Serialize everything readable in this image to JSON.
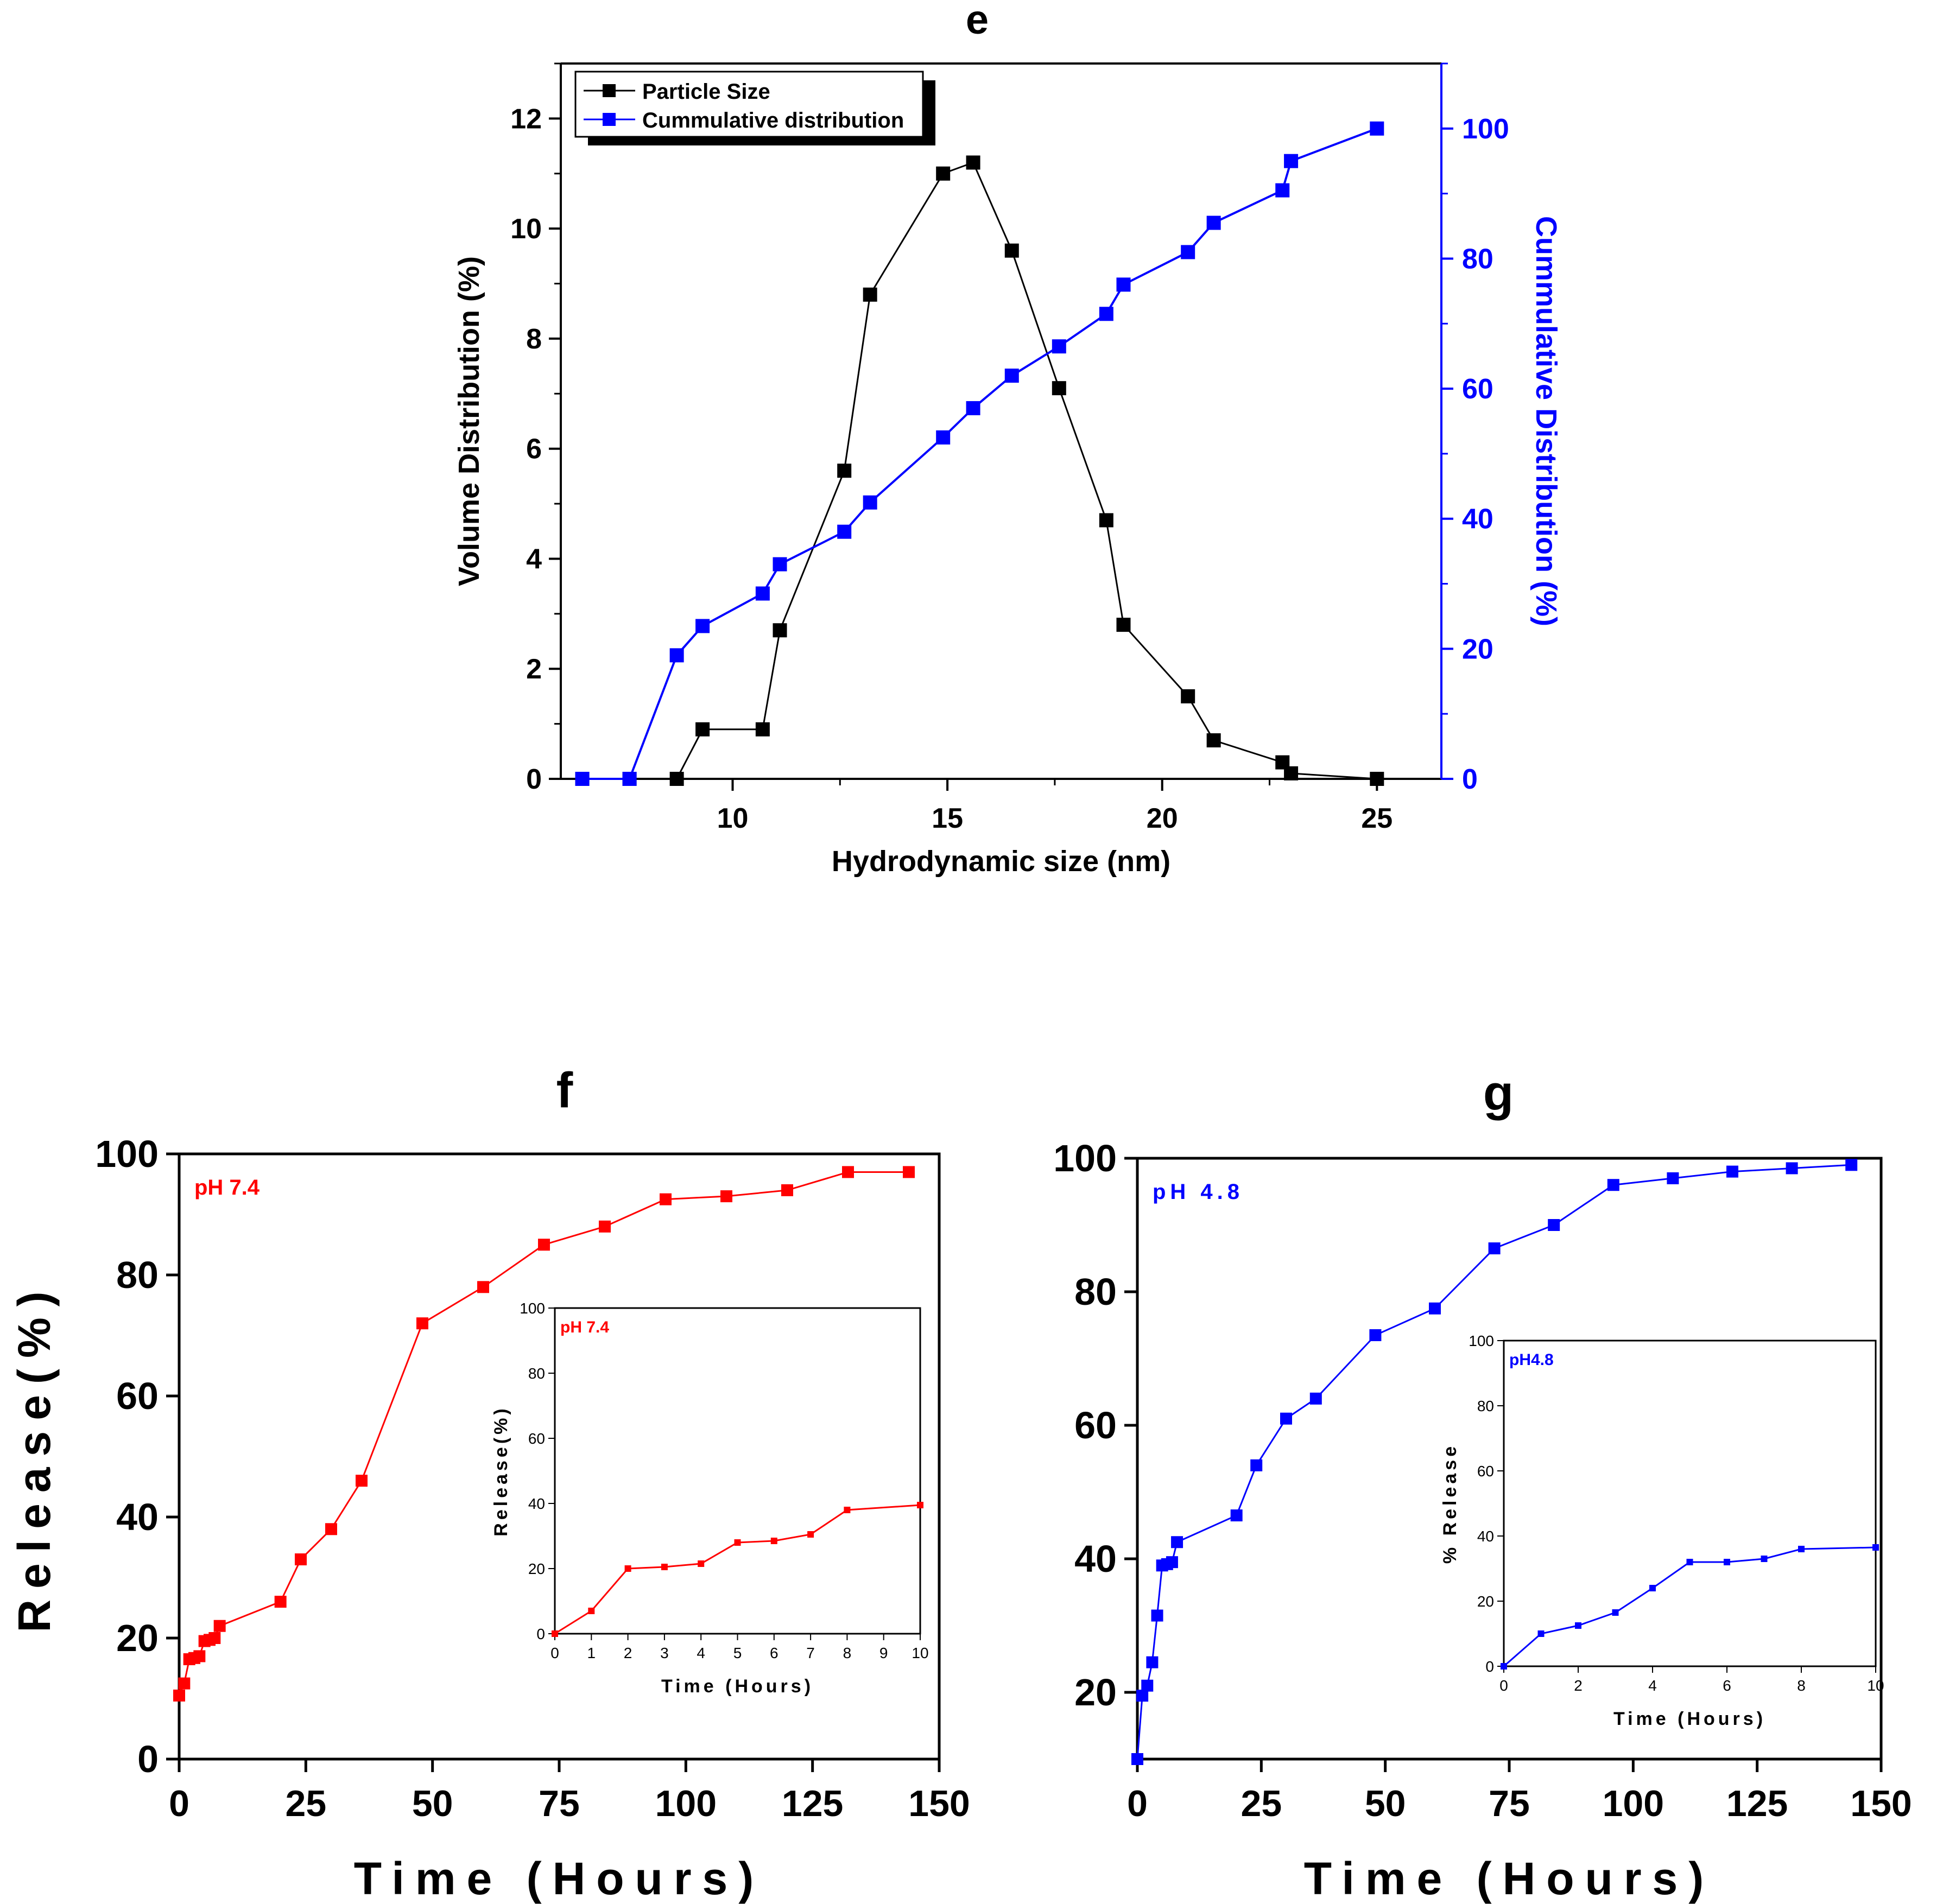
{
  "colors": {
    "black": "#000000",
    "blue": "#0000ff",
    "red": "#ff0000"
  },
  "chart_data": [
    {
      "id": "e",
      "type": "line",
      "panel_label": "e",
      "xlabel": "Hydrodynamic size (nm)",
      "ylabel": "Volume Distribution (%)",
      "ylabel_right": "Cummulative Distribution (%)",
      "xlim": [
        6,
        26.5
      ],
      "ylim": [
        0,
        13
      ],
      "ylim_right": [
        0,
        110
      ],
      "xticks": [
        10,
        15,
        20,
        25
      ],
      "yticks": [
        0,
        2,
        4,
        6,
        8,
        10,
        12
      ],
      "yticks_right": [
        0,
        20,
        40,
        60,
        80,
        100
      ],
      "legend": [
        "Particle Size",
        "Cummulative distribution"
      ],
      "legend_position": "top-left",
      "series": [
        {
          "name": "Particle Size",
          "axis": "left",
          "color": "#000000",
          "x": [
            6.5,
            7.6,
            8.7,
            9.3,
            10.7,
            11.1,
            12.6,
            13.2,
            14.9,
            15.6,
            16.5,
            17.6,
            18.7,
            19.1,
            20.6,
            21.2,
            22.8,
            23.0,
            25.0
          ],
          "y": [
            0,
            0,
            0,
            0.9,
            0.9,
            2.7,
            5.6,
            8.8,
            11.0,
            11.2,
            9.6,
            7.1,
            4.7,
            2.8,
            1.5,
            0.7,
            0.3,
            0.1,
            0
          ]
        },
        {
          "name": "Cummulative distribution",
          "axis": "right",
          "color": "#0000ff",
          "x": [
            6.5,
            7.6,
            8.7,
            9.3,
            10.7,
            11.1,
            12.6,
            13.2,
            14.9,
            15.6,
            16.5,
            17.6,
            18.7,
            19.1,
            20.6,
            21.2,
            22.8,
            23.0,
            25.0
          ],
          "y": [
            0,
            0,
            19,
            23.5,
            28.5,
            33,
            38,
            42.5,
            52.5,
            57,
            62,
            66.5,
            71.5,
            76,
            81,
            85.5,
            90.5,
            95,
            100
          ]
        }
      ]
    },
    {
      "id": "f",
      "type": "line",
      "panel_label": "f",
      "annotation": "pH 7.4",
      "xlabel": "Time (Hours)",
      "ylabel": "Release(%)",
      "xlim": [
        0,
        150
      ],
      "ylim": [
        0,
        100
      ],
      "xticks": [
        0,
        25,
        50,
        75,
        100,
        125,
        150
      ],
      "yticks": [
        0,
        20,
        40,
        60,
        80,
        100
      ],
      "series": [
        {
          "name": "pH 7.4",
          "color": "#ff0000",
          "x": [
            0,
            1,
            2,
            3,
            4,
            5,
            6,
            7,
            8,
            20,
            24,
            30,
            36,
            48,
            60,
            72,
            84,
            96,
            108,
            120,
            132,
            144
          ],
          "y": [
            10.5,
            12.5,
            16.5,
            16.7,
            17,
            19.5,
            19.7,
            20,
            22,
            26,
            33,
            38,
            46,
            72,
            78,
            85,
            88,
            92.5,
            93,
            94,
            97,
            97
          ]
        }
      ],
      "inset": {
        "annotation": "pH 7.4",
        "xlabel": "Time (Hours)",
        "ylabel": "Release(%)",
        "xlim": [
          0,
          10
        ],
        "ylim": [
          0,
          100
        ],
        "xticks": [
          0,
          1,
          2,
          3,
          4,
          5,
          6,
          7,
          8,
          9,
          10
        ],
        "yticks": [
          0,
          20,
          40,
          60,
          80,
          100
        ],
        "series": [
          {
            "name": "pH 7.4",
            "color": "#ff0000",
            "x": [
              0,
              1,
              2,
              3,
              4,
              5,
              6,
              7,
              8,
              10
            ],
            "y": [
              0,
              7,
              20,
              20.5,
              21.5,
              28,
              28.5,
              30.5,
              38,
              39.5
            ]
          }
        ]
      }
    },
    {
      "id": "g",
      "type": "line",
      "panel_label": "g",
      "annotation": "pH 4.8",
      "xlabel": "Time (Hours)",
      "ylabel": "",
      "xlim": [
        0,
        150
      ],
      "ylim": [
        10,
        100
      ],
      "xticks": [
        0,
        25,
        50,
        75,
        100,
        125,
        150
      ],
      "yticks": [
        20,
        40,
        60,
        80,
        100
      ],
      "series": [
        {
          "name": "pH 4.8",
          "color": "#0000ff",
          "x": [
            0,
            1,
            2,
            3,
            4,
            5,
            6,
            7,
            8,
            20,
            24,
            30,
            36,
            48,
            60,
            72,
            84,
            96,
            108,
            120,
            132,
            144
          ],
          "y": [
            10,
            19.5,
            21,
            24.5,
            31.5,
            39,
            39.2,
            39.5,
            42.5,
            46.5,
            54,
            61,
            64,
            73.5,
            77.5,
            86.5,
            90,
            96,
            97,
            98,
            98.5,
            99
          ]
        }
      ],
      "inset": {
        "annotation": "pH4.8",
        "xlabel": "Time (Hours)",
        "ylabel": "% Release",
        "xlim": [
          0,
          10
        ],
        "ylim": [
          0,
          100
        ],
        "xticks": [
          0,
          2,
          4,
          6,
          8,
          10
        ],
        "yticks": [
          0,
          20,
          40,
          60,
          80,
          100
        ],
        "series": [
          {
            "name": "pH4.8",
            "color": "#0000ff",
            "x": [
              0,
              1,
              2,
              3,
              4,
              5,
              6,
              7,
              8,
              10
            ],
            "y": [
              0,
              10,
              12.5,
              16.5,
              24,
              32,
              32,
              33,
              36,
              36.5
            ]
          }
        ]
      }
    }
  ]
}
